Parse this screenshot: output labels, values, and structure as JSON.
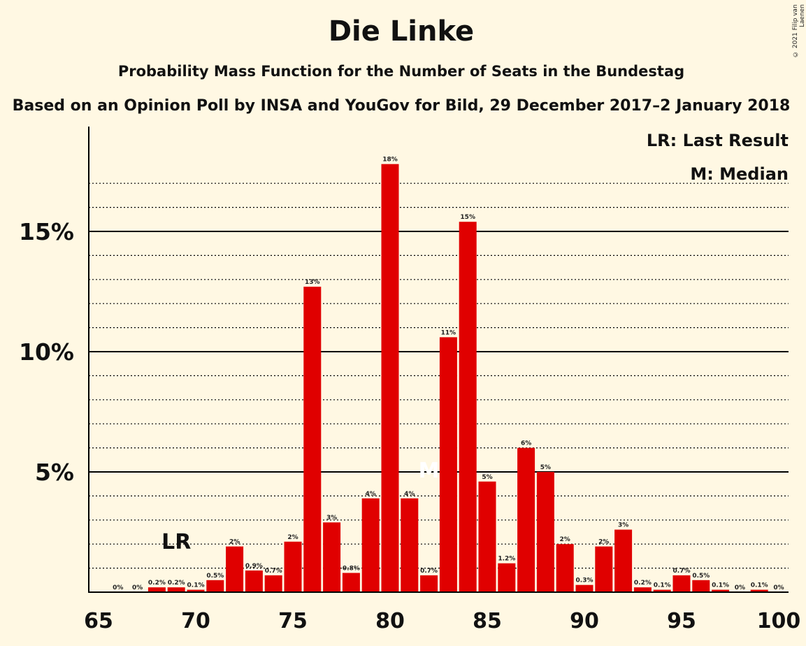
{
  "header": {
    "title": "Die Linke",
    "subtitle": "Probability Mass Function for the Number of Seats in the Bundestag",
    "subtitle2": "Based on an Opinion Poll by INSA and YouGov for Bild, 29 December 2017–2 January 2018",
    "copyright": "© 2021 Filip van Laenen"
  },
  "colors": {
    "background": "#fff8e3",
    "bar": "#e00000",
    "text": "#111111"
  },
  "legend": {
    "last_result": "LR: Last Result",
    "median": "M: Median"
  },
  "markers": {
    "last_result_seat": 69,
    "last_result_label": "LR",
    "median_seat": 82,
    "median_label": "M"
  },
  "chart_data": {
    "type": "bar",
    "x": [
      66,
      67,
      68,
      69,
      70,
      71,
      72,
      73,
      74,
      75,
      76,
      77,
      78,
      79,
      80,
      81,
      82,
      83,
      84,
      85,
      86,
      87,
      88,
      89,
      90,
      91,
      92,
      93,
      94,
      95,
      96,
      97,
      98,
      99,
      100
    ],
    "values": [
      0,
      0,
      0.2,
      0.2,
      0.1,
      0.5,
      1.9,
      0.9,
      0.7,
      2.1,
      12.7,
      2.9,
      0.8,
      3.9,
      17.8,
      3.9,
      0.7,
      10.6,
      15.4,
      4.6,
      1.2,
      6.0,
      5.0,
      2.0,
      0.3,
      1.9,
      2.6,
      0.2,
      0.1,
      0.7,
      0.5,
      0.1,
      0,
      0.1,
      0
    ],
    "labels": [
      "0%",
      "0%",
      "0.2%",
      "0.2%",
      "0.1%",
      "0.5%",
      "2%",
      "0.9%",
      "0.7%",
      "2%",
      "13%",
      "3%",
      "0.8%",
      "4%",
      "18%",
      "4%",
      "0.7%",
      "11%",
      "15%",
      "5%",
      "1.2%",
      "6%",
      "5%",
      "2%",
      "0.3%",
      "2%",
      "3%",
      "0.2%",
      "0.1%",
      "0.7%",
      "0.5%",
      "0.1%",
      "0%",
      "0.1%",
      "0%"
    ],
    "xlim": [
      65,
      100
    ],
    "ylim": [
      0,
      19
    ],
    "x_ticks": [
      "65",
      "70",
      "75",
      "80",
      "85",
      "90",
      "95",
      "100"
    ],
    "y_ticks": [
      "5%",
      "10%",
      "15%"
    ],
    "y_tick_values": [
      5,
      10,
      15
    ],
    "grid": "solid major lines at 5% steps, dotted minor lines at 1% steps",
    "legend_placement": "top-right"
  }
}
